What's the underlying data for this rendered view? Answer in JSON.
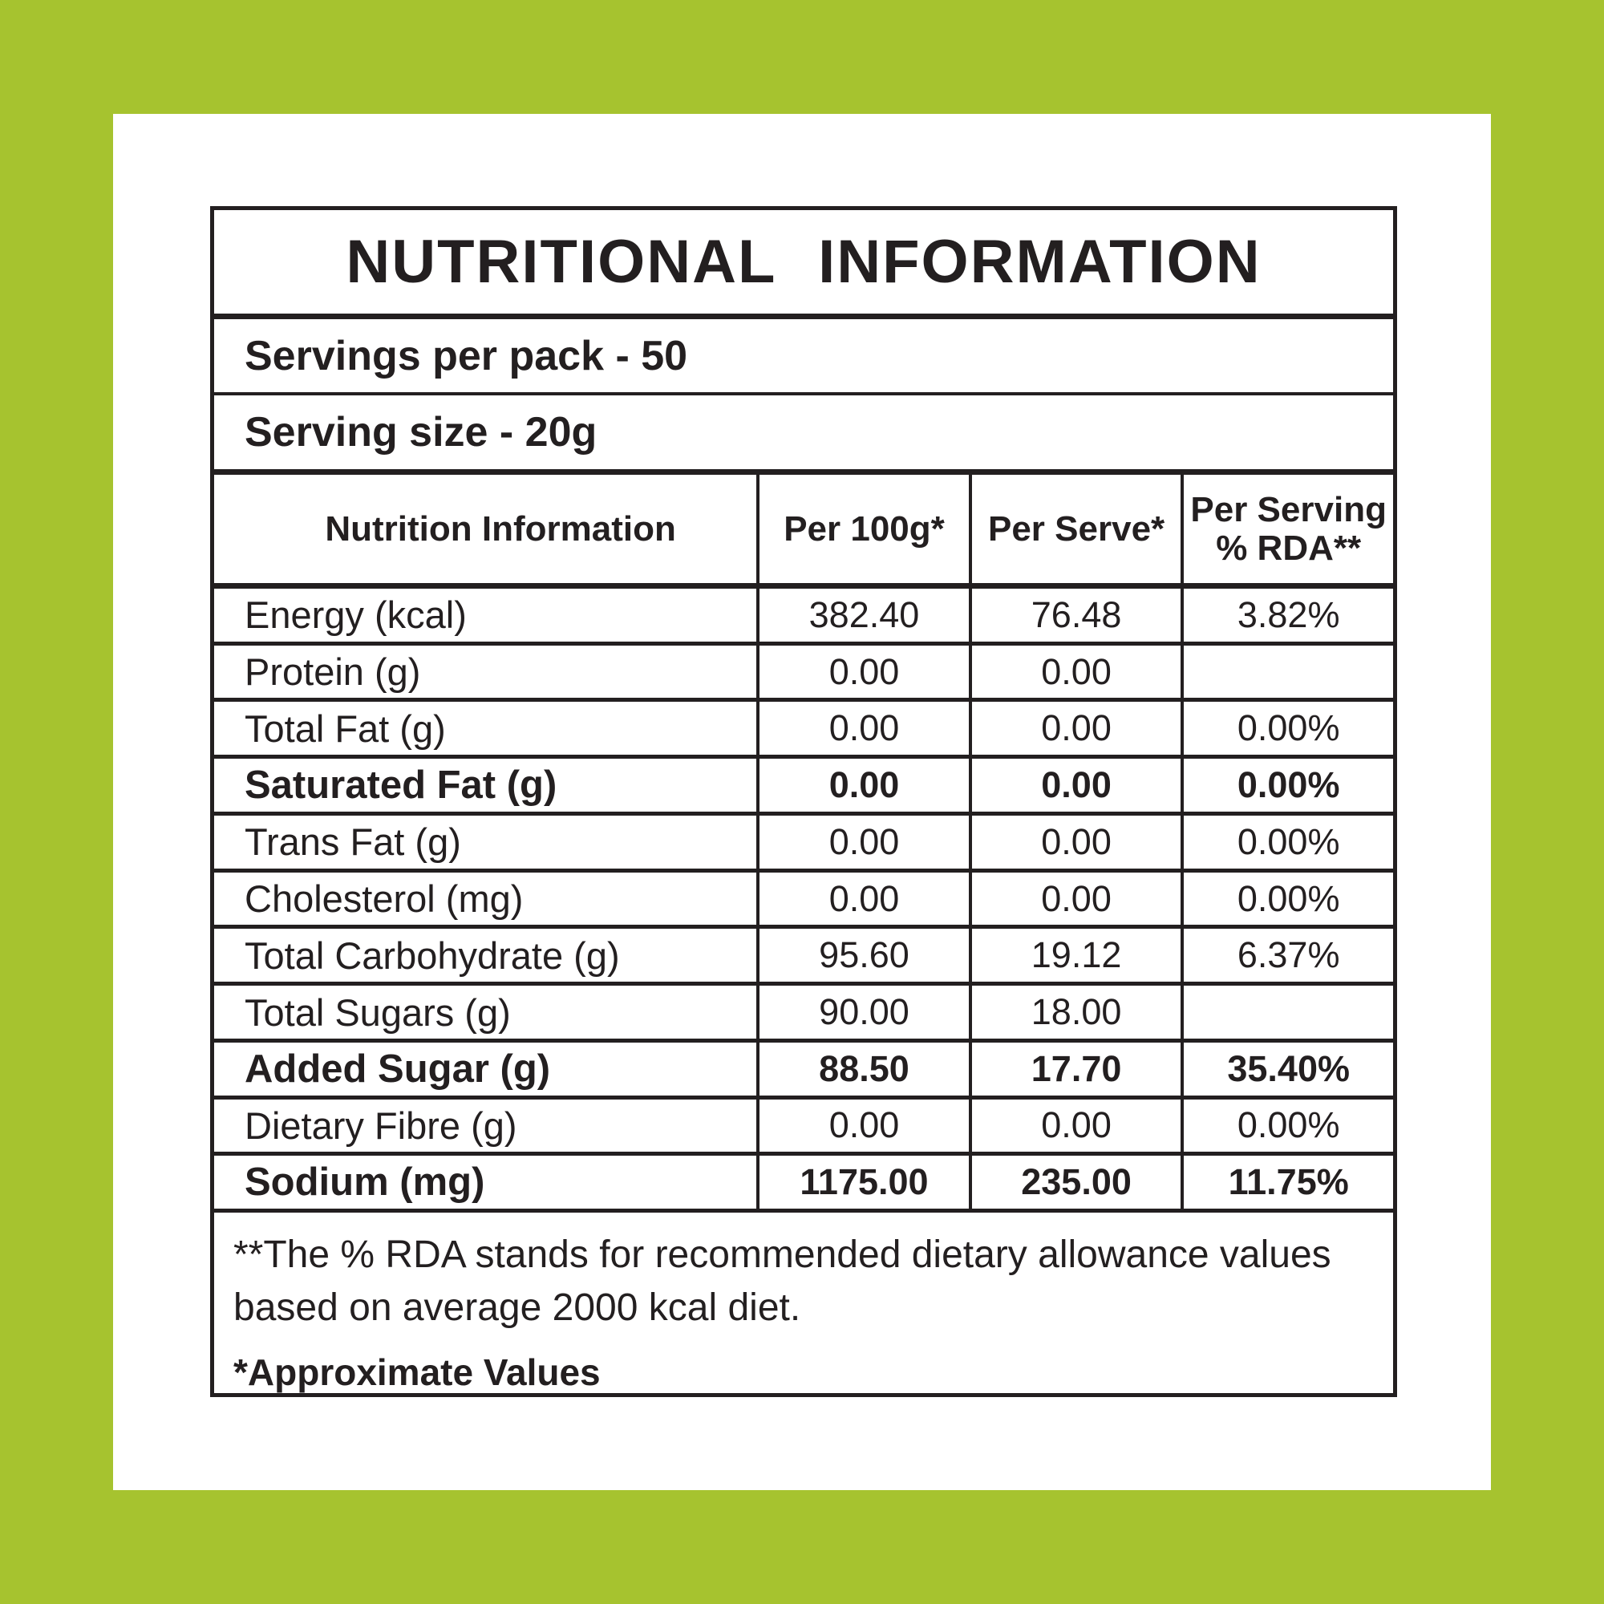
{
  "colors": {
    "background_green": "#a6c32f",
    "panel_white": "#ffffff",
    "text_black": "#231f20"
  },
  "table": {
    "title": "NUTRITIONAL INFORMATION",
    "servings_per_pack": "Servings per pack - 50",
    "serving_size": "Serving size - 20g",
    "columns": [
      "Nutrition Information",
      "Per 100g*",
      "Per Serve*",
      "Per Serving\n% RDA**"
    ],
    "rows": [
      {
        "label": "Energy (kcal)",
        "per100": "382.40",
        "serve": "76.48",
        "rda": "3.82%",
        "bold": false
      },
      {
        "label": "Protein (g)",
        "per100": "0.00",
        "serve": "0.00",
        "rda": "",
        "bold": false
      },
      {
        "label": "Total Fat (g)",
        "per100": "0.00",
        "serve": "0.00",
        "rda": "0.00%",
        "bold": false
      },
      {
        "label": "Saturated Fat (g)",
        "per100": "0.00",
        "serve": "0.00",
        "rda": "0.00%",
        "bold": true
      },
      {
        "label": "Trans Fat (g)",
        "per100": "0.00",
        "serve": "0.00",
        "rda": "0.00%",
        "bold": false
      },
      {
        "label": "Cholesterol (mg)",
        "per100": "0.00",
        "serve": "0.00",
        "rda": "0.00%",
        "bold": false
      },
      {
        "label": "Total Carbohydrate (g)",
        "per100": "95.60",
        "serve": "19.12",
        "rda": "6.37%",
        "bold": false
      },
      {
        "label": "Total Sugars (g)",
        "per100": "90.00",
        "serve": "18.00",
        "rda": "",
        "bold": false
      },
      {
        "label": "Added Sugar (g)",
        "per100": "88.50",
        "serve": "17.70",
        "rda": "35.40%",
        "bold": true
      },
      {
        "label": "Dietary Fibre (g)",
        "per100": "0.00",
        "serve": "0.00",
        "rda": "0.00%",
        "bold": false
      },
      {
        "label": "Sodium (mg)",
        "per100": "1175.00",
        "serve": "235.00",
        "rda": "11.75%",
        "bold": true
      }
    ]
  },
  "footnotes": {
    "rda": "**The % RDA stands for recommended dietary allowance values based on average 2000 kcal diet.",
    "approx": "*Approximate Values"
  }
}
